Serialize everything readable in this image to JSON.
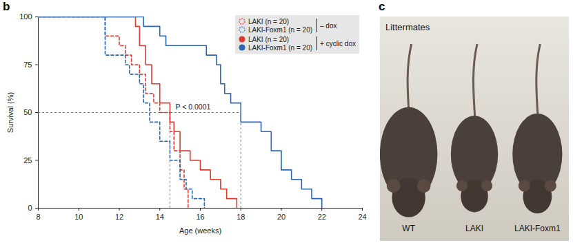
{
  "chart_data": {
    "type": "line",
    "panel_label": "b",
    "x_label": "Age (weeks)",
    "y_label": "Survival (%)",
    "xlim": [
      8,
      24
    ],
    "xticks": [
      8,
      10,
      12,
      14,
      16,
      18,
      20,
      22,
      24
    ],
    "ylim": [
      0,
      100
    ],
    "yticks": [
      0,
      25,
      50,
      75,
      100
    ],
    "legend": "top-right",
    "annotations": [
      {
        "text": "P < 0.0001"
      }
    ],
    "reference_lines": {
      "y": 50,
      "x": [
        14.5,
        18
      ]
    },
    "series": [
      {
        "name": "LAKI (n = 20)",
        "group": "– dox",
        "color": "#e03a2f",
        "line_style": "dashed",
        "marker": "circle_open",
        "x": [
          8,
          11.3,
          12,
          12.3,
          12.6,
          13,
          13.3,
          13.7,
          14,
          14.5,
          14.7,
          15,
          15.2,
          15.4
        ],
        "values": [
          100,
          90,
          85,
          80,
          75,
          70,
          60,
          55,
          50,
          40,
          30,
          20,
          10,
          0
        ]
      },
      {
        "name": "LAKI-Foxm1 (n = 20)",
        "group": "– dox",
        "color": "#2a66b3",
        "line_style": "dashed",
        "marker": "circle_open",
        "x": [
          8,
          11.3,
          12.3,
          12.5,
          13,
          13.2,
          13.5,
          14,
          14.5,
          15,
          15.3,
          15.6,
          16.2
        ],
        "values": [
          100,
          80,
          75,
          70,
          65,
          55,
          45,
          35,
          25,
          15,
          10,
          5,
          0
        ]
      },
      {
        "name": "LAKI (n = 20)",
        "group": "+ cyclic dox",
        "color": "#e03a2f",
        "line_style": "solid",
        "marker": "circle",
        "x": [
          8,
          12.8,
          13,
          13.3,
          13.6,
          14,
          14.5,
          14.7,
          15,
          15.5,
          16,
          16.5,
          17,
          17.3,
          17.8
        ],
        "values": [
          100,
          95,
          85,
          75,
          65,
          55,
          45,
          40,
          30,
          25,
          20,
          15,
          10,
          5,
          0
        ]
      },
      {
        "name": "LAKI-Foxm1 (n = 20)",
        "group": "+ cyclic dox",
        "color": "#2a66b3",
        "line_style": "solid",
        "marker": "circle",
        "x": [
          8,
          13.2,
          14,
          14.3,
          16.3,
          16.8,
          17,
          17.2,
          17.5,
          18,
          19,
          19.5,
          20,
          20.5,
          21,
          21.5,
          22
        ],
        "values": [
          100,
          95,
          90,
          85,
          80,
          75,
          65,
          60,
          55,
          45,
          40,
          30,
          20,
          15,
          10,
          5,
          0
        ]
      }
    ]
  },
  "photo": {
    "panel_label": "c",
    "title": "Littermates",
    "labels": [
      "WT",
      "LAKI",
      "LAKI-Foxm1"
    ]
  }
}
